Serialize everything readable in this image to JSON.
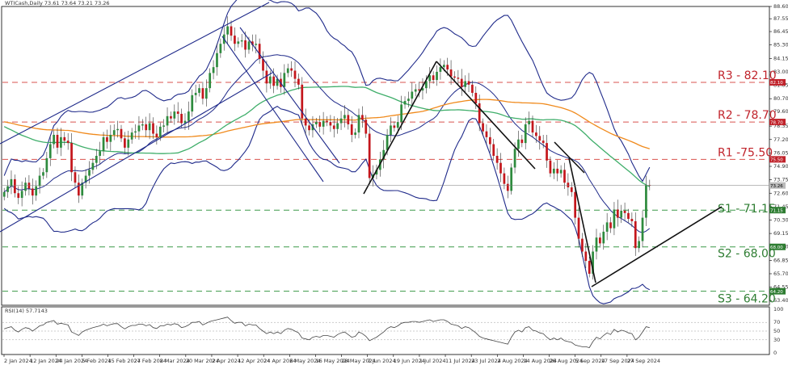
{
  "chart_data": {
    "type": "candlestick",
    "symbol_header": "WTICash,Daily  73.61 73.64 73.21 73.26",
    "price_ticks": [
      "88.60",
      "87.55",
      "86.45",
      "85.30",
      "84.15",
      "83.00",
      "81.85",
      "80.70",
      "79.60",
      "78.35",
      "77.20",
      "76.05",
      "74.90",
      "73.75",
      "72.60",
      "71.45",
      "70.30",
      "69.15",
      "68.00",
      "66.85",
      "65.70",
      "64.55",
      "63.40"
    ],
    "y_range": [
      63.0,
      88.6
    ],
    "x_tick_labels": [
      "2 Jan 2024",
      "12 Jan 2024",
      "24 Jan 2024",
      "5 Feb 2024",
      "15 Feb 2024",
      "27 Feb 2024",
      "8 Mar 2024",
      "20 Mar 2024",
      "2 Apr 2024",
      "12 Apr 2024",
      "24 Apr 2024",
      "6 May 2024",
      "16 May 2024",
      "28 May 2024",
      "7 Jun 2024",
      "19 Jun 2024",
      "1 Jul 2024",
      "11 Jul 2024",
      "23 Jul 2024",
      "2 Aug 2024",
      "14 Aug 2024",
      "26 Aug 2024",
      "5 Sep 2024",
      "17 Sep 2024",
      "27 Sep 2024"
    ],
    "levels": [
      {
        "name": "R3",
        "label": "R3 - 82.10",
        "value": 82.1,
        "color": "#d9534f",
        "badge": "82.10"
      },
      {
        "name": "R2",
        "label": "R2 - 78.70",
        "value": 78.7,
        "color": "#d9534f",
        "badge": "78.70"
      },
      {
        "name": "R1",
        "label": "R1 -75.50",
        "value": 75.5,
        "color": "#d9534f",
        "badge": "75.50"
      },
      {
        "name": "S1",
        "label": "S1 - 71.15",
        "value": 71.15,
        "color": "#3c9a48",
        "badge": "71.15"
      },
      {
        "name": "S2",
        "label": "S2 - 68.00",
        "value": 68.0,
        "color": "#3c9a48",
        "badge": "68.00"
      },
      {
        "name": "S3",
        "label": "S3 - 64.20",
        "value": 64.2,
        "color": "#3c9a48",
        "badge": "64.20"
      }
    ],
    "current_price": 73.26,
    "current_badge": "73.26",
    "series": [
      {
        "name": "close",
        "values": [
          72.7,
          73.2,
          73.8,
          72.6,
          72.2,
          72.8,
          73.5,
          73.0,
          72.4,
          73.2,
          74.1,
          74.4,
          75.6,
          76.8,
          77.6,
          76.5,
          77.4,
          77.1,
          76.9,
          74.4,
          73.5,
          72.4,
          73.5,
          74.1,
          74.6,
          75.2,
          75.8,
          76.2,
          77.4,
          77.0,
          77.6,
          78.0,
          78.1,
          77.3,
          76.5,
          77.2,
          77.8,
          77.9,
          78.4,
          78.5,
          78.0,
          78.6,
          77.7,
          77.4,
          78.3,
          78.4,
          79.2,
          79.0,
          79.6,
          79.4,
          78.6,
          78.8,
          79.6,
          81.0,
          81.2,
          81.6,
          80.7,
          81.6,
          82.9,
          83.4,
          84.6,
          85.4,
          86.2,
          86.9,
          86.1,
          85.4,
          85.6,
          85.7,
          84.9,
          85.6,
          85.3,
          85.4,
          84.1,
          83.1,
          82.0,
          82.6,
          81.8,
          82.4,
          81.7,
          82.9,
          83.3,
          83.1,
          82.4,
          81.9,
          79.0,
          78.4,
          78.0,
          78.5,
          78.7,
          78.3,
          78.8,
          78.7,
          78.4,
          78.1,
          78.6,
          79.0,
          79.3,
          78.5,
          77.6,
          77.8,
          79.3,
          78.9,
          77.7,
          73.9,
          74.2,
          74.6,
          75.5,
          76.3,
          77.6,
          78.4,
          78.2,
          78.7,
          80.2,
          80.5,
          80.7,
          81.3,
          81.5,
          81.4,
          81.6,
          82.2,
          82.7,
          82.3,
          83.0,
          83.4,
          83.6,
          83.2,
          82.6,
          82.5,
          82.4,
          81.7,
          82.2,
          81.9,
          81.2,
          80.3,
          78.6,
          77.9,
          77.4,
          76.8,
          75.8,
          75.2,
          74.3,
          73.4,
          72.8,
          74.8,
          76.4,
          77.2,
          76.9,
          78.5,
          78.8,
          77.8,
          77.5,
          77.1,
          76.9,
          75.4,
          74.3,
          74.7,
          74.3,
          74.6,
          73.5,
          73.1,
          72.7,
          70.5,
          68.7,
          67.6,
          66.8,
          65.7,
          67.6,
          68.8,
          68.3,
          69.3,
          70.1,
          69.6,
          71.2,
          70.5,
          71.1,
          70.9,
          70.4,
          70.2,
          67.9,
          68.5,
          70.5,
          73.3,
          73.26
        ]
      }
    ],
    "indicator": {
      "label": "RSI(14) 57.7143",
      "ticks": [
        "100",
        "70",
        "50",
        "30",
        "0"
      ],
      "values": [
        55,
        58,
        60,
        52,
        48,
        54,
        58,
        56,
        50,
        56,
        62,
        64,
        70,
        72,
        74,
        66,
        68,
        66,
        64,
        48,
        44,
        40,
        48,
        52,
        55,
        58,
        60,
        62,
        66,
        62,
        65,
        67,
        67,
        60,
        55,
        60,
        63,
        63,
        66,
        66,
        62,
        65,
        58,
        56,
        62,
        62,
        66,
        64,
        67,
        65,
        58,
        60,
        64,
        70,
        70,
        72,
        64,
        68,
        72,
        74,
        76,
        78,
        80,
        82,
        74,
        68,
        70,
        70,
        62,
        66,
        64,
        64,
        56,
        50,
        44,
        48,
        44,
        48,
        44,
        52,
        56,
        54,
        50,
        46,
        34,
        32,
        30,
        36,
        38,
        36,
        40,
        40,
        38,
        36,
        42,
        46,
        48,
        42,
        36,
        38,
        48,
        44,
        38,
        28,
        32,
        36,
        42,
        48,
        56,
        60,
        58,
        62,
        68,
        70,
        70,
        72,
        72,
        70,
        72,
        74,
        76,
        72,
        74,
        76,
        76,
        72,
        66,
        64,
        62,
        56,
        60,
        58,
        52,
        46,
        38,
        34,
        32,
        30,
        28,
        26,
        24,
        22,
        20,
        36,
        48,
        52,
        48,
        58,
        60,
        52,
        50,
        46,
        44,
        36,
        30,
        34,
        30,
        34,
        28,
        26,
        24,
        18,
        16,
        14,
        14,
        12,
        26,
        36,
        32,
        40,
        46,
        42,
        54,
        48,
        52,
        50,
        46,
        44,
        30,
        36,
        48,
        60,
        58
      ]
    }
  }
}
